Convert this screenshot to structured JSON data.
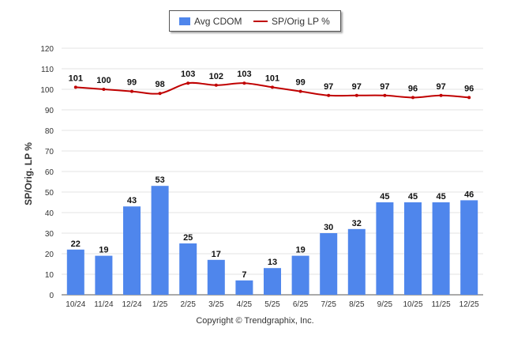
{
  "colors": {
    "bar": "#4f86ec",
    "line": "#c00000",
    "grid": "#e3e3e3",
    "axis": "#555555"
  },
  "legend": {
    "bar_label": "Avg CDOM",
    "line_label": "SP/Orig LP %"
  },
  "footer": "Copyright © Trendgraphix, Inc.",
  "chart_data": {
    "type": "bar",
    "categories": [
      "10/24",
      "11/24",
      "12/24",
      "1/25",
      "2/25",
      "3/25",
      "4/25",
      "5/25",
      "6/25",
      "7/25",
      "8/25",
      "9/25",
      "10/25",
      "11/25",
      "12/25"
    ],
    "series": [
      {
        "name": "Avg CDOM",
        "type": "bar",
        "values": [
          22,
          19,
          43,
          53,
          25,
          17,
          7,
          13,
          19,
          30,
          32,
          45,
          45,
          45,
          46
        ]
      },
      {
        "name": "SP/Orig LP %",
        "type": "line",
        "values": [
          101,
          100,
          99,
          98,
          103,
          102,
          103,
          101,
          99,
          97,
          97,
          97,
          96,
          97,
          96
        ]
      }
    ],
    "ylabel": "SP/Orig. LP %",
    "ylim": [
      0,
      120
    ],
    "yticks": [
      0,
      10,
      20,
      30,
      40,
      50,
      60,
      70,
      80,
      90,
      100,
      110,
      120
    ],
    "grid": true,
    "legend_position": "top"
  }
}
